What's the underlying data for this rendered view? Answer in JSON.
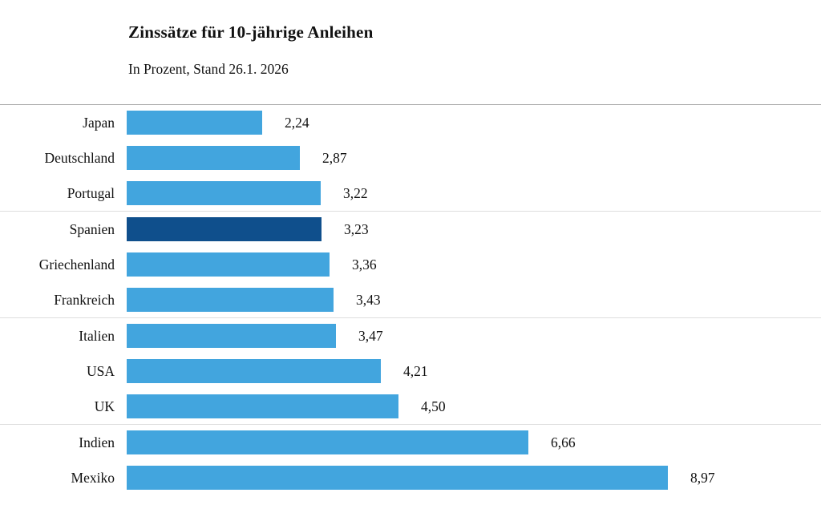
{
  "header": {
    "title": "Zinssätze für 10-jährige Anleihen",
    "subtitle": "In Prozent, Stand 26.1. 2026"
  },
  "chart_data": {
    "type": "bar",
    "orientation": "horizontal",
    "title": "Zinssätze für 10-jährige Anleihen",
    "subtitle": "In Prozent, Stand 26.1. 2026",
    "categories": [
      "Japan",
      "Deutschland",
      "Portugal",
      "Spanien",
      "Griechenland",
      "Frankreich",
      "Italien",
      "USA",
      "UK",
      "Indien",
      "Mexiko"
    ],
    "values": [
      2.24,
      2.87,
      3.22,
      3.23,
      3.36,
      3.43,
      3.47,
      4.21,
      4.5,
      6.66,
      8.97
    ],
    "value_labels": [
      "2,24",
      "2,87",
      "3,22",
      "3,23",
      "3,36",
      "3,43",
      "3,47",
      "4,21",
      "4,50",
      "6,66",
      "8,97"
    ],
    "unit": "Prozent",
    "highlight_index": 3,
    "highlighted_category": "Spanien",
    "group_start_indices": [
      3,
      6,
      9
    ],
    "xlim": [
      0,
      9.5
    ],
    "legend": "none",
    "grid": "horizontal group separator lines only",
    "colors": {
      "bar": "#42a5de",
      "highlight_bar": "#0f4f8c",
      "top_rule": "#ababab",
      "group_rule": "#dedede",
      "text": "#111111",
      "background": "#ffffff"
    }
  }
}
